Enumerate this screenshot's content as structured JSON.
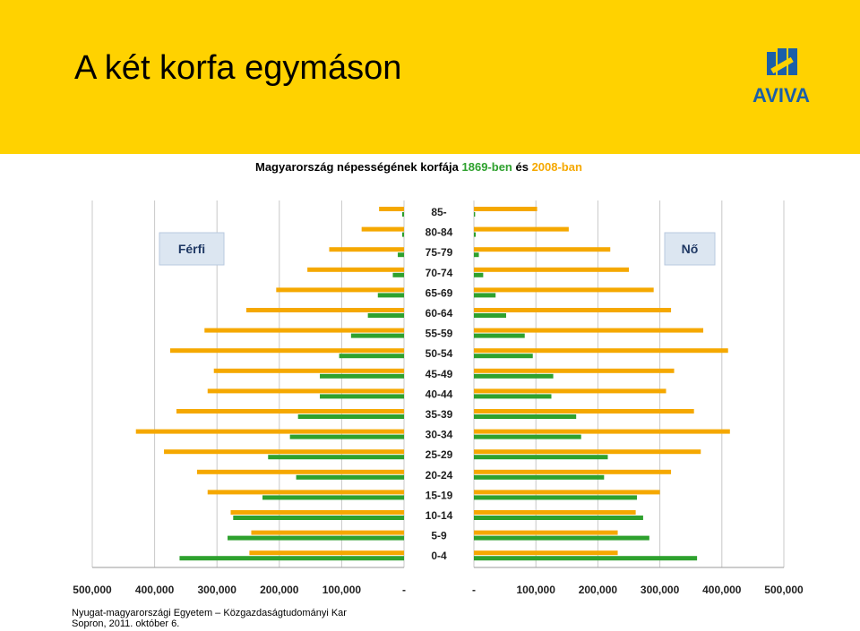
{
  "header": {
    "title": "A két korfa egymáson",
    "logo_text": "AVIVA",
    "background": "#ffd200"
  },
  "footer": {
    "line1": "Nyugat-magyarországi Egyetem – Közgazdaságtudományi Kar",
    "line2": "Sopron, 2011. október 6."
  },
  "chart_data": {
    "type": "bar",
    "orientation": "horizontal",
    "title_parts": [
      {
        "text": "Magyarország népességének korfája ",
        "color": "#000000"
      },
      {
        "text": "1869-ben",
        "color": "#2ea12e"
      },
      {
        "text": " és ",
        "color": "#000000"
      },
      {
        "text": "2008-ban",
        "color": "#f5a800"
      }
    ],
    "left_label": "Férfi",
    "right_label": "Nő",
    "categories": [
      "85-",
      "80-84",
      "75-79",
      "70-74",
      "65-69",
      "60-64",
      "55-59",
      "50-54",
      "45-49",
      "40-44",
      "35-39",
      "30-34",
      "25-29",
      "20-24",
      "15-19",
      "10-14",
      "5-9",
      "0-4"
    ],
    "series": [
      {
        "name": "1869-ben",
        "color": "#2ea12e",
        "male": [
          3000,
          3000,
          10000,
          18000,
          42000,
          58000,
          85000,
          104000,
          135000,
          135000,
          170000,
          183000,
          218000,
          173000,
          227000,
          274000,
          283000,
          360000
        ],
        "female": [
          2000,
          3000,
          8000,
          15000,
          35000,
          52000,
          82000,
          95000,
          128000,
          125000,
          165000,
          173000,
          216000,
          210000,
          263000,
          273000,
          283000,
          360000
        ]
      },
      {
        "name": "2008-ban",
        "color": "#f5a800",
        "male": [
          40000,
          68000,
          120000,
          155000,
          205000,
          253000,
          320000,
          375000,
          305000,
          315000,
          365000,
          430000,
          385000,
          332000,
          315000,
          278000,
          245000,
          248000
        ],
        "female": [
          102000,
          153000,
          220000,
          250000,
          290000,
          318000,
          370000,
          410000,
          323000,
          310000,
          355000,
          413000,
          366000,
          318000,
          300000,
          261000,
          232000,
          232000
        ]
      }
    ],
    "x_ticks_left": [
      "500,000",
      "400,000",
      "300,000",
      "200,000",
      "100,000",
      "-"
    ],
    "x_ticks_right": [
      "-",
      "100,000",
      "200,000",
      "300,000",
      "400,000",
      "500,000"
    ],
    "xlim": [
      0,
      500000
    ],
    "grid": true
  }
}
